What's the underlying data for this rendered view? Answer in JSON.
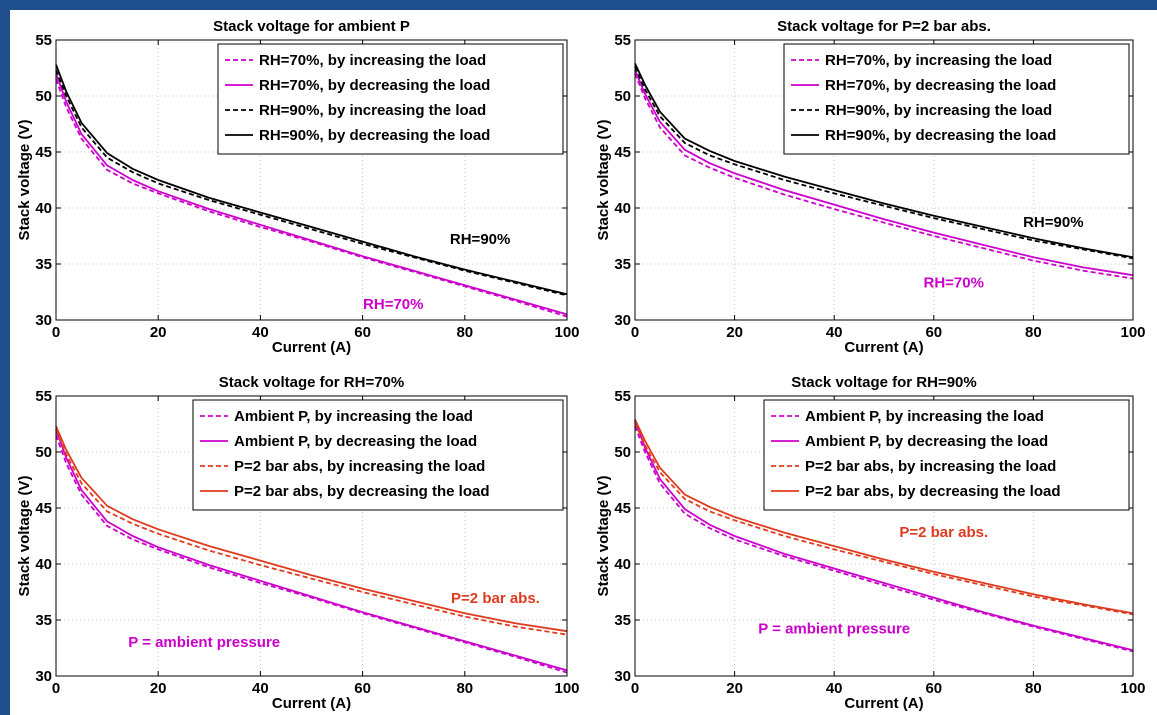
{
  "colors": {
    "magenta": "#cc00cc",
    "black": "#000000",
    "red": "#e03a1e",
    "border": "#1f4e8c"
  },
  "chart_data": [
    {
      "type": "line",
      "title": "Stack voltage for ambient P",
      "xlabel": "Current (A)",
      "ylabel": "Stack voltage (V)",
      "xlim": [
        0,
        100
      ],
      "ylim": [
        30,
        55
      ],
      "xticks": [
        "0",
        "20",
        "40",
        "60",
        "80",
        "100"
      ],
      "yticks": [
        "30",
        "35",
        "40",
        "45",
        "50",
        "55"
      ],
      "grid": true,
      "legend_position": "top-right",
      "annotations": [
        {
          "text": "RH=90%",
          "x": 83,
          "y": 36.8,
          "color": "#000000"
        },
        {
          "text": "RH=70%",
          "x": 66,
          "y": 31.0,
          "color": "#cc00cc"
        }
      ],
      "series": [
        {
          "name": "RH=70%, by increasing the load",
          "color": "#cc00cc",
          "dash": true,
          "x": [
            0,
            2,
            5,
            10,
            15,
            20,
            30,
            40,
            50,
            60,
            70,
            80,
            90,
            100
          ],
          "y": [
            51.5,
            49.0,
            46.2,
            43.4,
            42.2,
            41.3,
            39.7,
            38.3,
            37.0,
            35.6,
            34.3,
            33.0,
            31.7,
            30.3
          ]
        },
        {
          "name": "RH=70%, by decreasing the load",
          "color": "#cc00cc",
          "dash": false,
          "x": [
            0,
            2,
            5,
            10,
            15,
            20,
            30,
            40,
            50,
            60,
            70,
            80,
            90,
            100
          ],
          "y": [
            52.0,
            49.5,
            46.6,
            43.8,
            42.5,
            41.5,
            39.9,
            38.5,
            37.1,
            35.7,
            34.4,
            33.1,
            31.8,
            30.5
          ]
        },
        {
          "name": "RH=90%, by increasing the load",
          "color": "#000000",
          "dash": true,
          "x": [
            0,
            2,
            5,
            10,
            15,
            20,
            30,
            40,
            50,
            60,
            70,
            80,
            90,
            100
          ],
          "y": [
            52.3,
            50.0,
            47.2,
            44.5,
            43.2,
            42.2,
            40.7,
            39.4,
            38.1,
            36.8,
            35.6,
            34.4,
            33.3,
            32.2
          ]
        },
        {
          "name": "RH=90%, by decreasing the load",
          "color": "#000000",
          "dash": false,
          "x": [
            0,
            2,
            5,
            10,
            15,
            20,
            30,
            40,
            50,
            60,
            70,
            80,
            90,
            100
          ],
          "y": [
            52.8,
            50.4,
            47.6,
            44.9,
            43.5,
            42.5,
            40.9,
            39.6,
            38.3,
            37.0,
            35.7,
            34.5,
            33.4,
            32.3
          ]
        }
      ]
    },
    {
      "type": "line",
      "title": "Stack voltage for P=2 bar abs.",
      "xlabel": "Current (A)",
      "ylabel": "Stack voltage (V)",
      "xlim": [
        0,
        100
      ],
      "ylim": [
        30,
        55
      ],
      "xticks": [
        "0",
        "20",
        "40",
        "60",
        "80",
        "100"
      ],
      "yticks": [
        "30",
        "35",
        "40",
        "45",
        "50",
        "55"
      ],
      "grid": true,
      "legend_position": "top-right",
      "annotations": [
        {
          "text": "RH=90%",
          "x": 84,
          "y": 38.3,
          "color": "#000000"
        },
        {
          "text": "RH=70%",
          "x": 64,
          "y": 32.9,
          "color": "#cc00cc"
        }
      ],
      "series": [
        {
          "name": "RH=70%, by increasing the load",
          "color": "#cc00cc",
          "dash": true,
          "x": [
            0,
            2,
            5,
            10,
            15,
            20,
            30,
            40,
            50,
            60,
            70,
            80,
            90,
            100
          ],
          "y": [
            52.0,
            49.8,
            47.2,
            44.7,
            43.6,
            42.7,
            41.2,
            39.9,
            38.7,
            37.5,
            36.4,
            35.3,
            34.4,
            33.7
          ]
        },
        {
          "name": "RH=70%, by decreasing the load",
          "color": "#cc00cc",
          "dash": false,
          "x": [
            0,
            2,
            5,
            10,
            15,
            20,
            30,
            40,
            50,
            60,
            70,
            80,
            90,
            100
          ],
          "y": [
            52.3,
            50.2,
            47.7,
            45.2,
            44.0,
            43.1,
            41.6,
            40.3,
            39.0,
            37.8,
            36.7,
            35.6,
            34.7,
            34.0
          ]
        },
        {
          "name": "RH=90%, by increasing the load",
          "color": "#000000",
          "dash": true,
          "x": [
            0,
            2,
            5,
            10,
            15,
            20,
            30,
            40,
            50,
            60,
            70,
            80,
            90,
            100
          ],
          "y": [
            52.6,
            50.6,
            48.2,
            45.8,
            44.7,
            43.9,
            42.5,
            41.3,
            40.2,
            39.1,
            38.1,
            37.1,
            36.3,
            35.5
          ]
        },
        {
          "name": "RH=90%, by decreasing the load",
          "color": "#000000",
          "dash": false,
          "x": [
            0,
            2,
            5,
            10,
            15,
            20,
            30,
            40,
            50,
            60,
            70,
            80,
            90,
            100
          ],
          "y": [
            52.9,
            51.0,
            48.6,
            46.2,
            45.1,
            44.2,
            42.8,
            41.6,
            40.4,
            39.3,
            38.3,
            37.3,
            36.4,
            35.6
          ]
        }
      ]
    },
    {
      "type": "line",
      "title": "Stack voltage for RH=70%",
      "xlabel": "Current (A)",
      "ylabel": "Stack voltage (V)",
      "xlim": [
        0,
        100
      ],
      "ylim": [
        30,
        55
      ],
      "xticks": [
        "0",
        "20",
        "40",
        "60",
        "80",
        "100"
      ],
      "yticks": [
        "30",
        "35",
        "40",
        "45",
        "50",
        "55"
      ],
      "grid": true,
      "legend_position": "top-right",
      "annotations": [
        {
          "text": "P=2 bar abs.",
          "x": 86,
          "y": 36.5,
          "color": "#e03a1e"
        },
        {
          "text": "P = ambient pressure",
          "x": 29,
          "y": 32.6,
          "color": "#cc00cc"
        }
      ],
      "series": [
        {
          "name": "Ambient P, by increasing the load",
          "color": "#cc00cc",
          "dash": true,
          "x": [
            0,
            2,
            5,
            10,
            15,
            20,
            30,
            40,
            50,
            60,
            70,
            80,
            90,
            100
          ],
          "y": [
            51.5,
            49.0,
            46.2,
            43.4,
            42.2,
            41.3,
            39.7,
            38.3,
            37.0,
            35.6,
            34.3,
            33.0,
            31.7,
            30.3
          ]
        },
        {
          "name": "Ambient P, by decreasing the load",
          "color": "#cc00cc",
          "dash": false,
          "x": [
            0,
            2,
            5,
            10,
            15,
            20,
            30,
            40,
            50,
            60,
            70,
            80,
            90,
            100
          ],
          "y": [
            52.0,
            49.5,
            46.6,
            43.8,
            42.5,
            41.5,
            39.9,
            38.5,
            37.1,
            35.7,
            34.4,
            33.1,
            31.8,
            30.5
          ]
        },
        {
          "name": "P=2 bar abs, by increasing the load",
          "color": "#e03a1e",
          "dash": true,
          "x": [
            0,
            2,
            5,
            10,
            15,
            20,
            30,
            40,
            50,
            60,
            70,
            80,
            90,
            100
          ],
          "y": [
            52.0,
            49.8,
            47.2,
            44.7,
            43.6,
            42.7,
            41.2,
            39.9,
            38.7,
            37.5,
            36.4,
            35.3,
            34.4,
            33.7
          ]
        },
        {
          "name": "P=2 bar abs, by decreasing the load",
          "color": "#e03a1e",
          "dash": false,
          "x": [
            0,
            2,
            5,
            10,
            15,
            20,
            30,
            40,
            50,
            60,
            70,
            80,
            90,
            100
          ],
          "y": [
            52.3,
            50.2,
            47.7,
            45.2,
            44.0,
            43.1,
            41.6,
            40.3,
            39.0,
            37.8,
            36.7,
            35.6,
            34.7,
            34.0
          ]
        }
      ]
    },
    {
      "type": "line",
      "title": "Stack voltage for RH=90%",
      "xlabel": "Current (A)",
      "ylabel": "Stack voltage (V)",
      "xlim": [
        0,
        100
      ],
      "ylim": [
        30,
        55
      ],
      "xticks": [
        "0",
        "20",
        "40",
        "60",
        "80",
        "100"
      ],
      "yticks": [
        "30",
        "35",
        "40",
        "45",
        "50",
        "55"
      ],
      "grid": true,
      "legend_position": "top-right",
      "annotations": [
        {
          "text": "P=2 bar abs.",
          "x": 62,
          "y": 42.4,
          "color": "#e03a1e"
        },
        {
          "text": "P = ambient pressure",
          "x": 40,
          "y": 33.8,
          "color": "#cc00cc"
        }
      ],
      "series": [
        {
          "name": "Ambient P, by increasing the load",
          "color": "#cc00cc",
          "dash": true,
          "x": [
            0,
            2,
            5,
            10,
            15,
            20,
            30,
            40,
            50,
            60,
            70,
            80,
            90,
            100
          ],
          "y": [
            52.3,
            50.0,
            47.2,
            44.5,
            43.2,
            42.2,
            40.7,
            39.4,
            38.1,
            36.8,
            35.6,
            34.4,
            33.3,
            32.2
          ]
        },
        {
          "name": "Ambient P, by decreasing the load",
          "color": "#cc00cc",
          "dash": false,
          "x": [
            0,
            2,
            5,
            10,
            15,
            20,
            30,
            40,
            50,
            60,
            70,
            80,
            90,
            100
          ],
          "y": [
            52.8,
            50.4,
            47.6,
            44.9,
            43.5,
            42.5,
            40.9,
            39.6,
            38.3,
            37.0,
            35.7,
            34.5,
            33.4,
            32.3
          ]
        },
        {
          "name": "P=2 bar abs, by increasing the load",
          "color": "#e03a1e",
          "dash": true,
          "x": [
            0,
            2,
            5,
            10,
            15,
            20,
            30,
            40,
            50,
            60,
            70,
            80,
            90,
            100
          ],
          "y": [
            52.6,
            50.6,
            48.2,
            45.8,
            44.7,
            43.9,
            42.5,
            41.3,
            40.2,
            39.1,
            38.1,
            37.1,
            36.3,
            35.5
          ]
        },
        {
          "name": "P=2 bar abs, by decreasing the load",
          "color": "#e03a1e",
          "dash": false,
          "x": [
            0,
            2,
            5,
            10,
            15,
            20,
            30,
            40,
            50,
            60,
            70,
            80,
            90,
            100
          ],
          "y": [
            52.9,
            51.0,
            48.6,
            46.2,
            45.1,
            44.2,
            42.8,
            41.6,
            40.4,
            39.3,
            38.3,
            37.3,
            36.4,
            35.6
          ]
        }
      ]
    }
  ]
}
